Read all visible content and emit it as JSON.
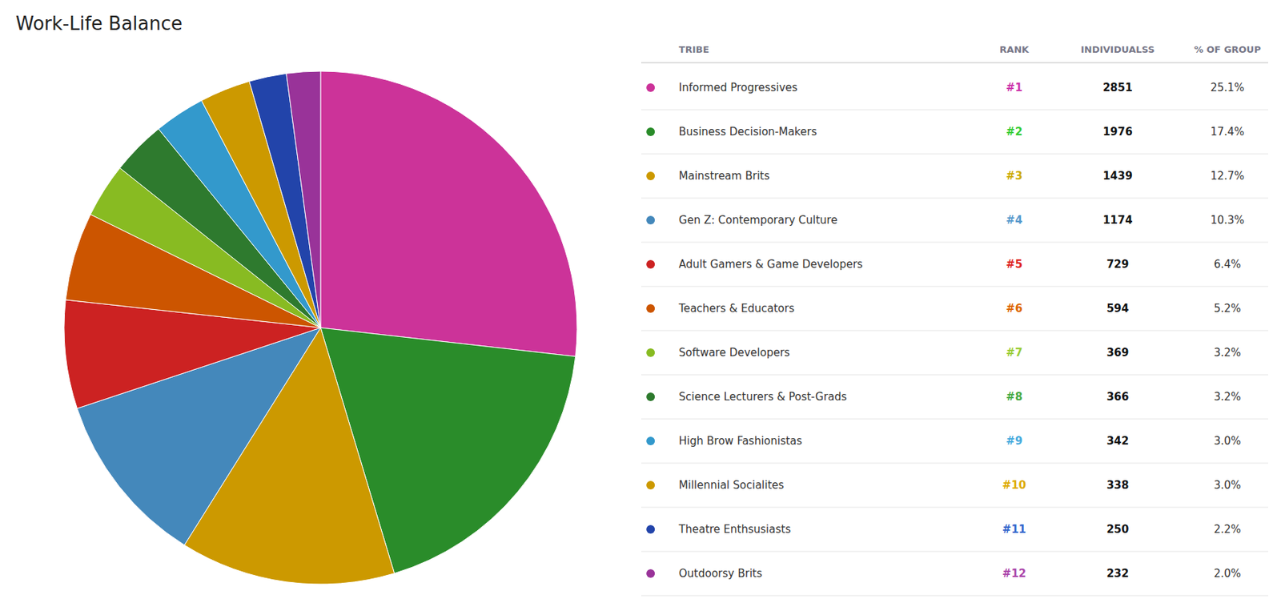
{
  "chart_data": {
    "type": "pie",
    "title": "Work-Life Balance",
    "columns": [
      "TRIBE",
      "RANK",
      "INDIVIDUALSS",
      "% OF GROUP"
    ],
    "categories": [
      "Informed Progressives",
      "Business Decision-Makers",
      "Mainstream Brits",
      "Gen Z: Contemporary Culture",
      "Adult Gamers & Game Developers",
      "Teachers & Educators",
      "Software Developers",
      "Science Lecturers & Post-Grads",
      "High Brow Fashionistas",
      "Millennial Socialites",
      "Theatre Enthsusiasts",
      "Outdoorsy Brits"
    ],
    "values": [
      25.1,
      17.4,
      12.7,
      10.3,
      6.4,
      5.2,
      3.2,
      3.2,
      3.0,
      3.0,
      2.2,
      2.0
    ],
    "value_labels": [
      "25.1%",
      "17.4%",
      "12.7%",
      "10.3%",
      "6.4%",
      "5.2%",
      "3.2%",
      "3.2%",
      "3.0%",
      "3.0%",
      "2.2%",
      "2.0%"
    ],
    "ranks": [
      "#1",
      "#2",
      "#3",
      "#4",
      "#5",
      "#6",
      "#7",
      "#8",
      "#9",
      "#10",
      "#11",
      "#12"
    ],
    "individuals": [
      2851,
      1976,
      1439,
      1174,
      729,
      594,
      369,
      366,
      342,
      338,
      250,
      232
    ],
    "colors": [
      "#cc3399",
      "#2a8c2a",
      "#cc9900",
      "#4488bb",
      "#cc2222",
      "#cc5500",
      "#88bb22",
      "#2e7a2e",
      "#3399cc",
      "#cc9900",
      "#2244aa",
      "#993399"
    ],
    "rank_colors": [
      "#cc33aa",
      "#33cc33",
      "#ccaa00",
      "#5599cc",
      "#dd2222",
      "#dd6600",
      "#99cc33",
      "#44aa44",
      "#44aadd",
      "#ddaa00",
      "#3366cc",
      "#aa44aa"
    ]
  }
}
